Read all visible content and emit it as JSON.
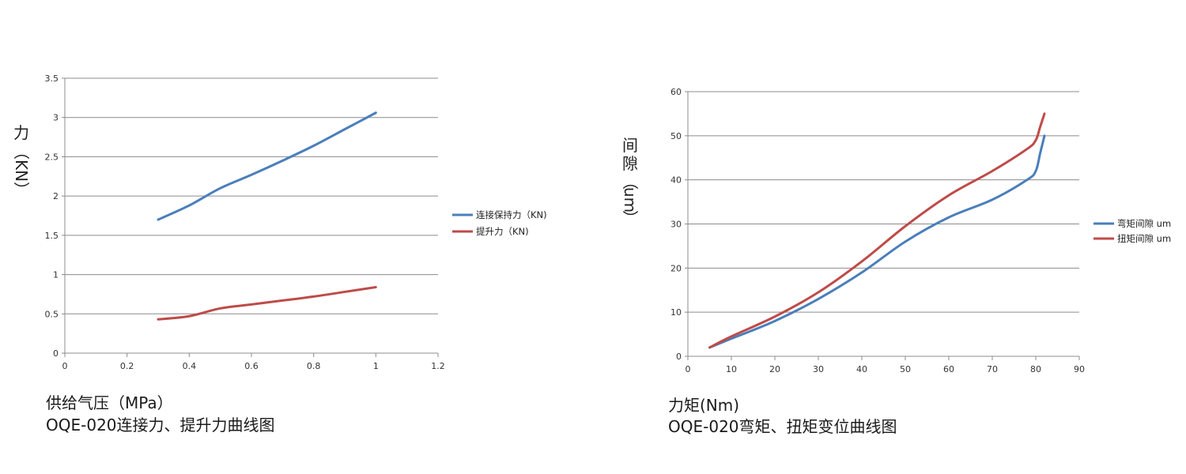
{
  "chart_data": [
    {
      "type": "line",
      "title": "",
      "xlabel": "供给气压（MPa）",
      "ylabel": "力（KN）",
      "ylabel_chars": [
        "力",
        "（",
        "KN",
        "）"
      ],
      "xlim": [
        0,
        1.2
      ],
      "ylim": [
        0,
        3.5
      ],
      "xticks": [
        "0",
        "0.2",
        "0.4",
        "0.6",
        "0.8",
        "1",
        "1.2"
      ],
      "yticks": [
        "0",
        "0.5",
        "1",
        "1.5",
        "2",
        "2.5",
        "3",
        "3.5"
      ],
      "grid": true,
      "legend_position": "right",
      "series": [
        {
          "name": "连接保持力（KN)",
          "color": "#4a7ebb",
          "x": [
            0.3,
            0.4,
            0.5,
            0.6,
            0.7,
            0.8,
            0.9,
            1.0
          ],
          "y": [
            1.7,
            1.88,
            2.1,
            2.27,
            2.45,
            2.64,
            2.85,
            3.06
          ]
        },
        {
          "name": "提升力（KN)",
          "color": "#be4b48",
          "x": [
            0.3,
            0.4,
            0.5,
            0.6,
            0.7,
            0.8,
            0.9,
            1.0
          ],
          "y": [
            0.43,
            0.47,
            0.57,
            0.62,
            0.67,
            0.72,
            0.78,
            0.84
          ]
        }
      ],
      "caption_lines": [
        "供给气压（MPa）",
        "OQE-020连接力、提升力曲线图"
      ]
    },
    {
      "type": "line",
      "title": "",
      "xlabel": "力矩(Nm)",
      "ylabel": "间隙（um）",
      "ylabel_chars": [
        "间",
        "隙",
        "（",
        "um",
        "）"
      ],
      "xlim": [
        0,
        90
      ],
      "ylim": [
        0,
        60
      ],
      "xticks": [
        "0",
        "10",
        "20",
        "30",
        "40",
        "50",
        "60",
        "70",
        "80",
        "90"
      ],
      "yticks": [
        "0",
        "10",
        "20",
        "30",
        "40",
        "50",
        "60"
      ],
      "grid": true,
      "legend_position": "right",
      "series": [
        {
          "name": "弯矩间隙 um",
          "color": "#4a7ebb",
          "x": [
            5,
            10,
            20,
            30,
            40,
            50,
            60,
            70,
            78,
            80,
            81,
            82
          ],
          "y": [
            2,
            4,
            8,
            13,
            19,
            26,
            31.5,
            35.5,
            40,
            42,
            46,
            50
          ]
        },
        {
          "name": "扭矩间隙 um",
          "color": "#be4b48",
          "x": [
            5,
            10,
            20,
            30,
            40,
            50,
            60,
            70,
            78,
            80,
            81,
            82
          ],
          "y": [
            2,
            4.5,
            9,
            14.5,
            21.5,
            29.5,
            36.5,
            42,
            47,
            49,
            52,
            55
          ]
        }
      ],
      "caption_lines": [
        "力矩(Nm)",
        "OQE-020弯矩、扭矩变位曲线图"
      ]
    }
  ]
}
